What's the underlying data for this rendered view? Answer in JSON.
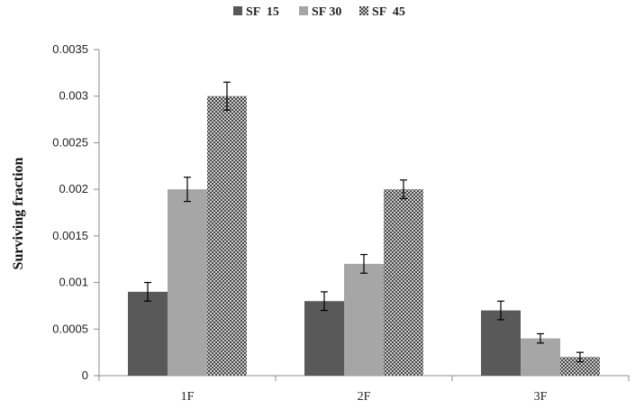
{
  "chart_data": {
    "type": "bar",
    "title": "",
    "xlabel": "",
    "ylabel": "Surviving  fraction",
    "categories": [
      "1F",
      "2F",
      "3F"
    ],
    "series": [
      {
        "name": "SF  15",
        "color": "#595959",
        "pattern": "solid",
        "values": [
          0.0009,
          0.0008,
          0.0007
        ],
        "errors": [
          0.0001,
          0.0001,
          0.0001
        ]
      },
      {
        "name": "SF 30",
        "color": "#a6a6a6",
        "pattern": "solid",
        "values": [
          0.002,
          0.0012,
          0.0004
        ],
        "errors": [
          0.00013,
          0.0001,
          5e-05
        ]
      },
      {
        "name": "SF  45",
        "color": "#444444",
        "pattern": "crosshatch",
        "values": [
          0.003,
          0.002,
          0.0002
        ],
        "errors": [
          0.00015,
          0.0001,
          5e-05
        ]
      }
    ],
    "ylim": [
      0,
      0.0035
    ],
    "yticks": [
      "0",
      "0.0005",
      "0.001",
      "0.0015",
      "0.002",
      "0.0025",
      "0.003",
      "0.0035"
    ],
    "legend_position": "top",
    "grid": false
  }
}
